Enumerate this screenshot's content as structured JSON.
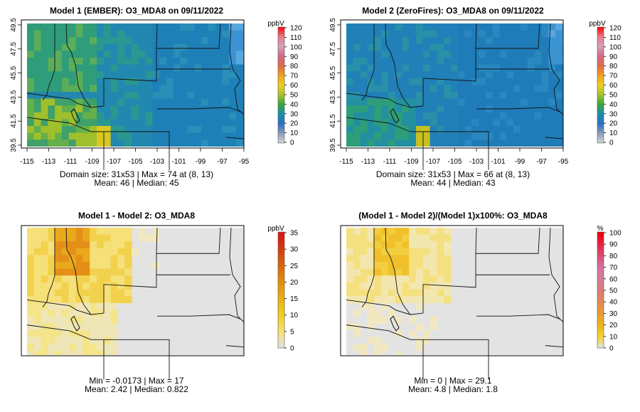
{
  "legend_unit_ppbv": "ppbV",
  "legend_unit_pct": "%",
  "lon_ticks": [
    "-115",
    "-113",
    "-111",
    "-109",
    "-107",
    "-105",
    "-103",
    "-101",
    "-99",
    "-97",
    "-95"
  ],
  "lat_ticks": [
    "39.5",
    "41.5",
    "43.5",
    "45.5",
    "47.5",
    "49.5"
  ],
  "colorbars": {
    "abs": {
      "labels": [
        "0",
        "10",
        "20",
        "30",
        "40",
        "50",
        "60",
        "70",
        "80",
        "90",
        "100",
        "110",
        "120"
      ],
      "stops": [
        "#d4d4d4",
        "#8a9cb8",
        "#2b6fc2",
        "#1a8fa8",
        "#3aa63a",
        "#a8c22a",
        "#f0d020",
        "#f0a020",
        "#e06a4a",
        "#d26a8a",
        "#d8a0b8",
        "#e87a8a",
        "#ff0000"
      ]
    },
    "diff": {
      "labels": [
        "0",
        "5",
        "10",
        "15",
        "20",
        "25",
        "30",
        "35"
      ],
      "stops": [
        "#e2e2e2",
        "#f6e070",
        "#f2cd1c",
        "#ebae10",
        "#e48c08",
        "#d8640a",
        "#d63a10",
        "#e01010"
      ]
    },
    "pct": {
      "labels": [
        "0",
        "10",
        "20",
        "30",
        "40",
        "50",
        "60",
        "70",
        "80",
        "90",
        "100"
      ],
      "stops": [
        "#e2e2e2",
        "#f2d22c",
        "#f0b418",
        "#e89a38",
        "#df8a58",
        "#d87c78",
        "#d67c96",
        "#d870a0",
        "#dd4a70",
        "#e52040",
        "#ee0000"
      ]
    }
  },
  "panels": [
    {
      "title": "Model 1 (EMBER): O3_MDA8 on 09/11/2022",
      "stats1": "Domain size: 31x53 | Max = 74 at (8, 13)",
      "stats2": "Mean: 46 |  Median: 45",
      "scale": "abs"
    },
    {
      "title": "Model 2 (ZeroFires): O3_MDA8 on 09/11/2022",
      "stats1": "Domain size: 31x53 | Max = 66 at (8, 13)",
      "stats2": "Mean: 44 |  Median: 43",
      "scale": "abs"
    },
    {
      "title": "Model 1 - Model 2: O3_MDA8",
      "stats1": "Min = -0.0173 | Max = 17",
      "stats2": "Mean: 2.42 |  Median: 0.822",
      "scale": "diff"
    },
    {
      "title": "(Model 1 - Model 2)/(Model 1)x100%: O3_MDA8",
      "stats1": "Min = 0 | Max = 29.1",
      "stats2": "Mean: 4.8 |  Median: 1.8",
      "scale": "pct"
    }
  ]
}
